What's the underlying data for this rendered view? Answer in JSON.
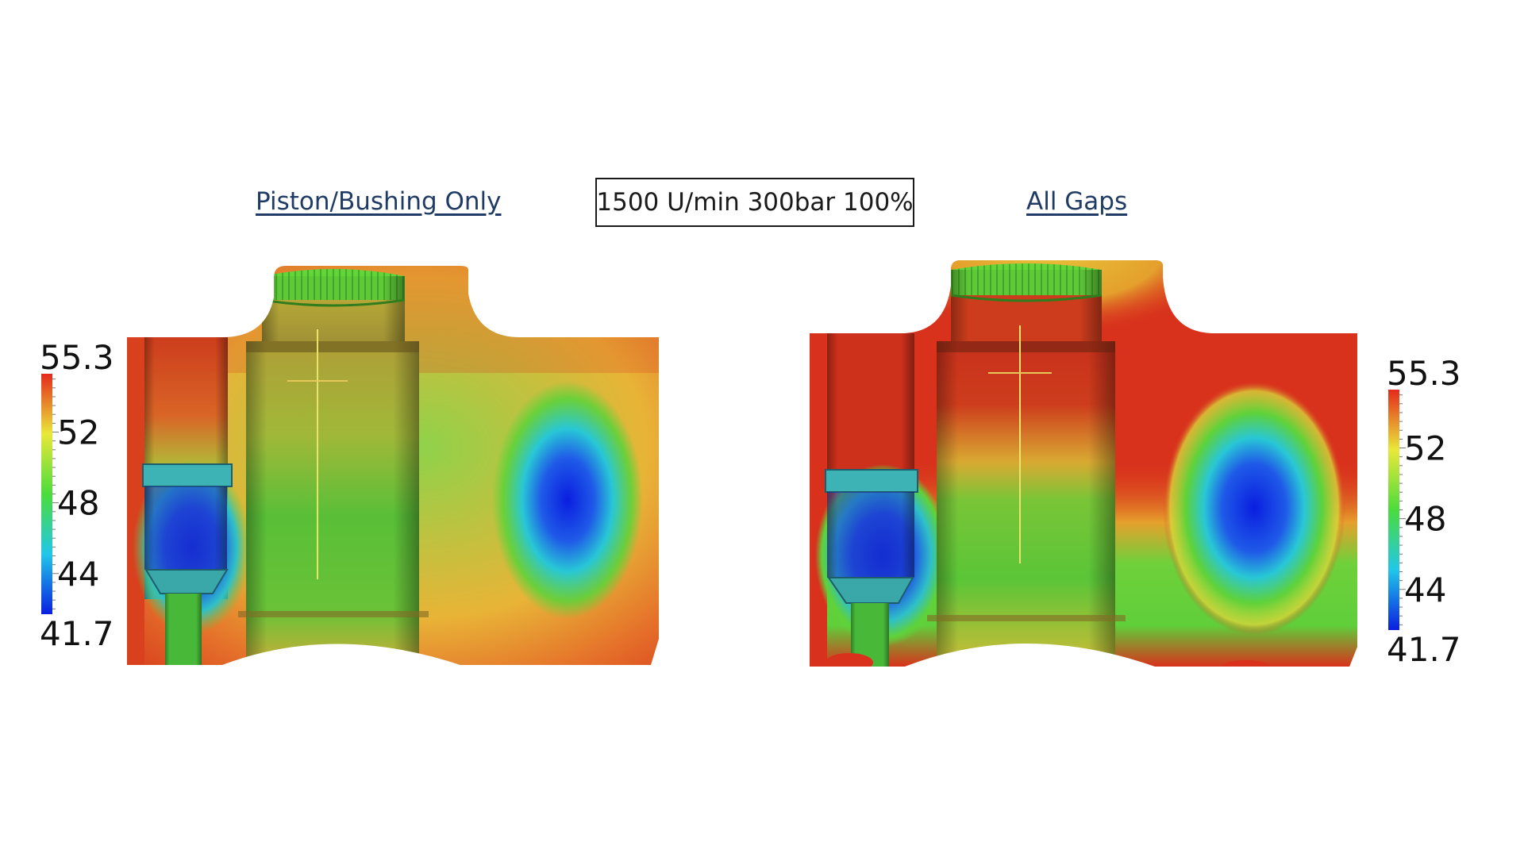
{
  "header": {
    "left_title": "Piston/Bushing Only",
    "condition": "1500 U/min 300bar 100%",
    "right_title": "All Gaps"
  },
  "colorbar": {
    "max_label": "55.3",
    "min_label": "41.7",
    "ticks": [
      "52",
      "48",
      "44"
    ],
    "min": 41.7,
    "max": 55.3,
    "tick_values": [
      52,
      48,
      44
    ],
    "colormap": [
      "#0a1ee0",
      "#21c7e8",
      "#4bdc3c",
      "#e9e83a",
      "#e42a1c"
    ]
  },
  "colors": {
    "red": "#d8321c",
    "green": "#5fcf3a",
    "blue": "#1430d8",
    "orange": "#e27a27"
  }
}
